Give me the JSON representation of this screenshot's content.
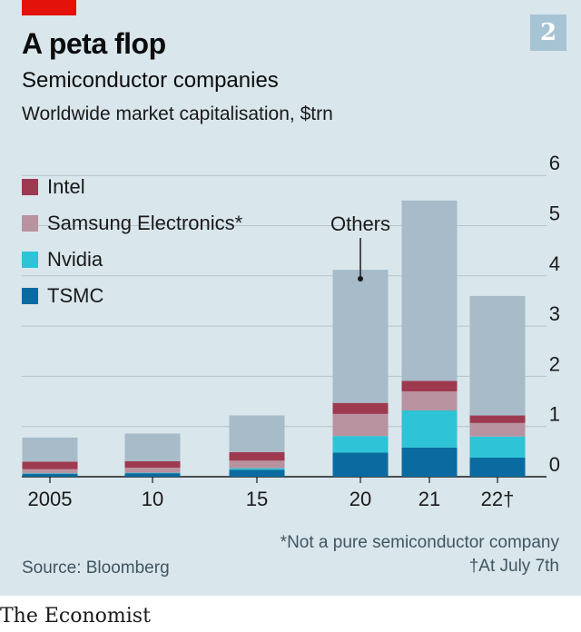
{
  "header": {
    "title": "A peta flop",
    "subtitle": "Semiconductor companies",
    "units": "Worldwide market capitalisation, $trn",
    "badge": "2"
  },
  "footer": {
    "note": "*Not a pure semiconductor company",
    "source": "Source: Bloomberg",
    "footnote": "†At July 7th",
    "brand": "The Economist"
  },
  "colors": {
    "background": "#d9e6ec",
    "accent": "#e3120b",
    "Intel": "#9e3a50",
    "Samsung Electronics": "#b8939f",
    "Nvidia": "#2ec3d6",
    "TSMC": "#0a6ba0",
    "Others": "#a7bcc8"
  },
  "chart_data": {
    "type": "bar",
    "stacked": true,
    "categories": [
      "2005",
      "10",
      "15",
      "20",
      "21",
      "22†"
    ],
    "series": [
      {
        "name": "TSMC",
        "values": [
          0.06,
          0.07,
          0.14,
          0.48,
          0.58,
          0.38
        ]
      },
      {
        "name": "Nvidia",
        "values": [
          0.01,
          0.01,
          0.03,
          0.33,
          0.74,
          0.42
        ]
      },
      {
        "name": "Samsung Electronics*",
        "values": [
          0.08,
          0.1,
          0.15,
          0.44,
          0.38,
          0.27
        ]
      },
      {
        "name": "Intel",
        "values": [
          0.15,
          0.13,
          0.17,
          0.22,
          0.21,
          0.15
        ]
      },
      {
        "name": "Others",
        "values": [
          0.48,
          0.55,
          0.73,
          2.65,
          3.59,
          2.38
        ]
      }
    ],
    "legend": [
      "Intel",
      "Samsung Electronics*",
      "Nvidia",
      "TSMC"
    ],
    "annotation": "Others",
    "yticks": [
      0,
      1,
      2,
      3,
      4,
      5,
      6
    ],
    "ylim": [
      0,
      6
    ],
    "grid": true,
    "y_axis_side": "right",
    "legend_position": "top-left"
  }
}
